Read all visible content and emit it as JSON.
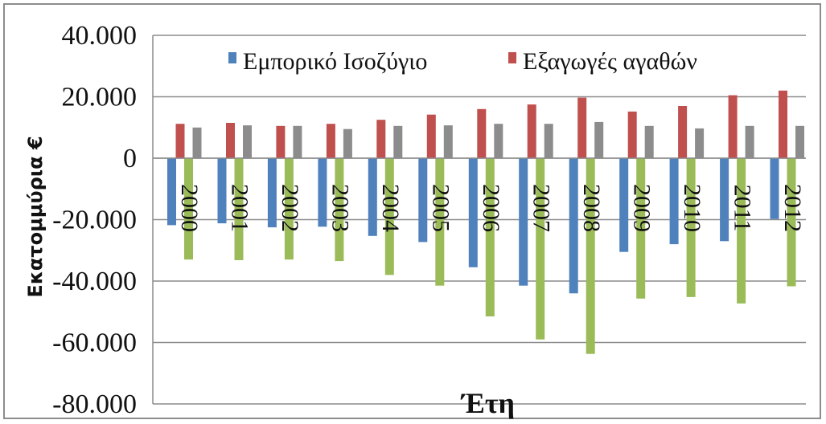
{
  "chart_data": {
    "type": "bar",
    "title": "",
    "xlabel": "Έτη",
    "ylabel": "Εκατομμύρια €",
    "ylim": [
      -80000,
      40000
    ],
    "yticks": [
      {
        "value": 40000,
        "label": "40.000"
      },
      {
        "value": 20000,
        "label": "20.000"
      },
      {
        "value": 0,
        "label": "0"
      },
      {
        "value": -20000,
        "label": "-20.000"
      },
      {
        "value": -40000,
        "label": "-40.000"
      },
      {
        "value": -60000,
        "label": "-60.000"
      },
      {
        "value": -80000,
        "label": "-80.000"
      }
    ],
    "grid": true,
    "legend_position": "top",
    "categories": [
      "2000",
      "2001",
      "2002",
      "2003",
      "2004",
      "2005",
      "2006",
      "2007",
      "2008",
      "2009",
      "2010",
      "2011",
      "2012"
    ],
    "series": [
      {
        "name": "Εμπορικό Ισοζύγιο",
        "color": "#4f81bd",
        "values": [
          -21800,
          -21200,
          -22500,
          -22300,
          -25300,
          -27300,
          -35500,
          -41500,
          -44000,
          -30500,
          -28000,
          -27000,
          -19800
        ]
      },
      {
        "name": "Εξαγωγές αγαθών",
        "color": "#c0504d",
        "values": [
          11200,
          11500,
          10500,
          11200,
          12500,
          14200,
          16000,
          17500,
          19700,
          15200,
          17000,
          20500,
          22000
        ]
      },
      {
        "name": "",
        "color": "#9bbb59",
        "values": [
          -33000,
          -33200,
          -33000,
          -33500,
          -38000,
          -41500,
          -51500,
          -59000,
          -63700,
          -45700,
          -45200,
          -47300,
          -41700
        ]
      },
      {
        "name": "",
        "color": "#8c8c8c",
        "values": [
          10000,
          10700,
          10500,
          9500,
          10500,
          10700,
          11200,
          11200,
          11800,
          10500,
          9700,
          10500,
          10500
        ]
      }
    ]
  }
}
